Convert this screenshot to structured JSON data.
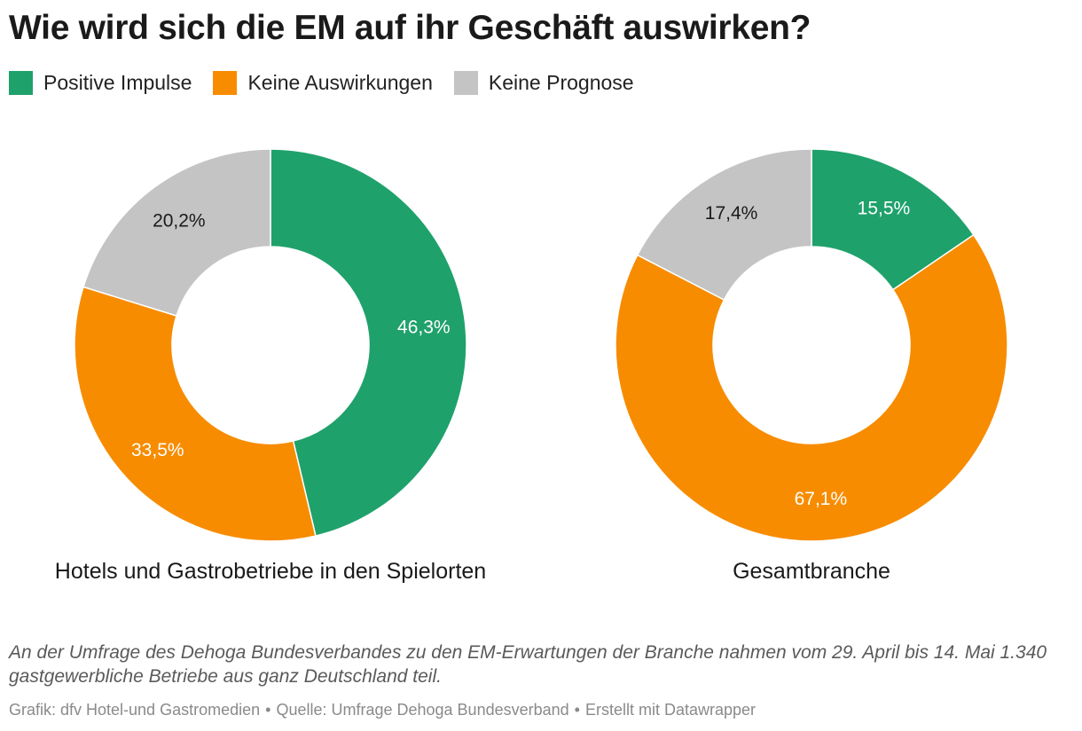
{
  "title": "Wie wird sich die EM auf ihr Geschäft auswirken?",
  "legend": [
    {
      "label": "Positive Impulse",
      "color": "#1fa16b"
    },
    {
      "label": "Keine Auswirkungen",
      "color": "#f78c00"
    },
    {
      "label": "Keine Prognose",
      "color": "#c4c4c4"
    }
  ],
  "chart_data": [
    {
      "type": "pie",
      "subtype": "donut",
      "title": "Hotels und Gastrobetriebe in den Spielorten",
      "categories": [
        "Positive Impulse",
        "Keine Auswirkungen",
        "Keine Prognose"
      ],
      "values": [
        46.3,
        33.5,
        20.2
      ],
      "labels": [
        "46,3%",
        "33,5%",
        "20,2%"
      ],
      "label_colors": [
        "#ffffff",
        "#ffffff",
        "#1a1a1a"
      ],
      "colors": [
        "#1fa16b",
        "#f78c00",
        "#c4c4c4"
      ]
    },
    {
      "type": "pie",
      "subtype": "donut",
      "title": "Gesamtbranche",
      "categories": [
        "Positive Impulse",
        "Keine Auswirkungen",
        "Keine Prognose"
      ],
      "values": [
        15.5,
        67.1,
        17.4
      ],
      "labels": [
        "15,5%",
        "67,1%",
        "17,4%"
      ],
      "label_colors": [
        "#ffffff",
        "#ffffff",
        "#1a1a1a"
      ],
      "colors": [
        "#1fa16b",
        "#f78c00",
        "#c4c4c4"
      ]
    }
  ],
  "note": "An der Umfrage des Dehoga Bundesverbandes zu den EM-Erwartungen der Branche nahmen vom 29. April bis 14. Mai 1.340 gastgewerbliche Betriebe aus ganz Deutschland teil.",
  "footer": {
    "grafik": "Grafik: dfv Hotel-und Gastromedien",
    "quelle": "Quelle: Umfrage Dehoga Bundesverband",
    "erstellt": "Erstellt mit Datawrapper",
    "separator": "•"
  }
}
